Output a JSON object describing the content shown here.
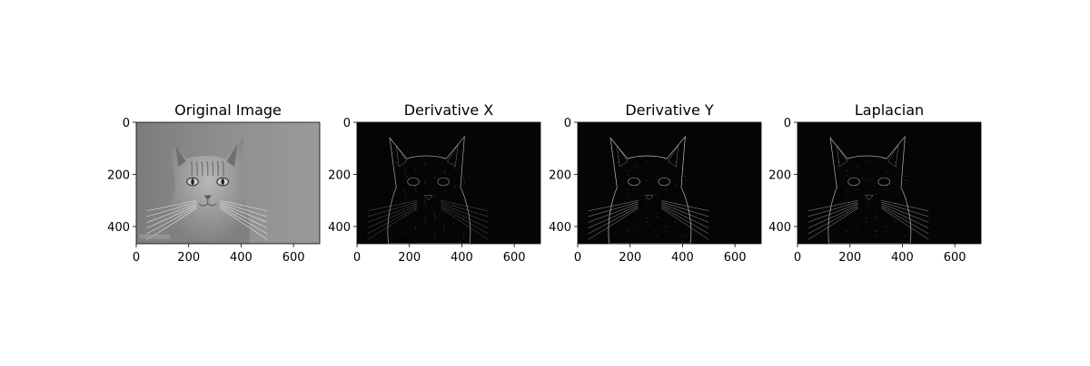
{
  "panels": [
    {
      "title": "Original Image",
      "xticks": [
        "0",
        "200",
        "400",
        "600"
      ],
      "yticks": [
        "0",
        "200",
        "400"
      ],
      "style": "original"
    },
    {
      "title": "Derivative X",
      "xticks": [
        "0",
        "200",
        "400",
        "600"
      ],
      "yticks": [
        "0",
        "200",
        "400"
      ],
      "style": "derivx"
    },
    {
      "title": "Derivative Y",
      "xticks": [
        "0",
        "200",
        "400",
        "600"
      ],
      "yticks": [
        "0",
        "200",
        "400"
      ],
      "style": "derivy"
    },
    {
      "title": "Laplacian",
      "xticks": [
        "0",
        "200",
        "400",
        "600"
      ],
      "yticks": [
        "0",
        "200",
        "400"
      ],
      "style": "laplacian"
    }
  ],
  "image_data": {
    "width": 700,
    "height": 466
  },
  "colors": {
    "original_bg": "#8a8a8a",
    "edge_bg": "#050505",
    "edge_line": "#d8d8d8"
  }
}
